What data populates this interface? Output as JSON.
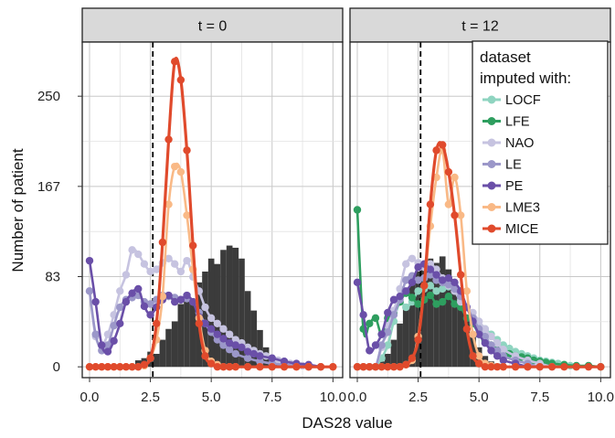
{
  "chart_data": {
    "type": "line",
    "xlabel": "DAS28 value",
    "ylabel": "Number of patient",
    "x_ticks": [
      "0.0",
      "2.5",
      "5.0",
      "7.5",
      "10.0"
    ],
    "y_ticks": [
      "0",
      "83",
      "167",
      "250"
    ],
    "xlim": [
      -0.3,
      10.4
    ],
    "ylim": [
      -10,
      300
    ],
    "threshold_line_x": 2.6,
    "grid": true,
    "legend_position": "top-right (inside right panel)",
    "legend_title_line1": "dataset",
    "legend_title_line2": "imputed  with:",
    "series_colors": {
      "LOCF": "#8fd4c0",
      "LFE": "#2e9e5f",
      "NAO": "#c6c3e0",
      "LE": "#9b97c9",
      "PE": "#6a4fa8",
      "LME3": "#f9b986",
      "MICE": "#e04a2c"
    },
    "histogram_color": "#3b3b3b",
    "panels": [
      {
        "strip": "t = 0",
        "histogram": {
          "x": [
            2.0,
            2.25,
            2.5,
            2.75,
            3.0,
            3.25,
            3.5,
            3.75,
            4.0,
            4.25,
            4.5,
            4.75,
            5.0,
            5.25,
            5.5,
            5.75,
            6.0,
            6.25,
            6.5,
            6.75,
            7.0,
            7.25,
            7.5,
            7.75,
            8.0,
            8.25,
            8.5
          ],
          "values": [
            6,
            8,
            14,
            12,
            25,
            35,
            42,
            58,
            62,
            58,
            78,
            88,
            100,
            95,
            108,
            112,
            110,
            100,
            70,
            52,
            34,
            18,
            10,
            6,
            4,
            3,
            2
          ]
        },
        "series": [
          {
            "name": "MICE",
            "x": [
              0.0,
              0.25,
              0.5,
              0.75,
              1.0,
              1.25,
              1.5,
              1.75,
              2.0,
              2.25,
              2.5,
              2.75,
              3.0,
              3.25,
              3.5,
              3.75,
              4.0,
              4.25,
              4.5,
              4.75,
              5.0,
              5.25,
              5.5,
              5.75,
              6.0,
              6.5,
              7.0,
              7.5,
              8.0,
              8.5,
              9.0,
              9.5,
              10.0
            ],
            "values": [
              0,
              0,
              0,
              0,
              0,
              0,
              0,
              0,
              0,
              2,
              8,
              40,
              115,
              210,
              282,
              265,
              200,
              112,
              40,
              10,
              3,
              0,
              0,
              0,
              0,
              0,
              0,
              0,
              0,
              0,
              0,
              0,
              0
            ]
          },
          {
            "name": "LME3",
            "x": [
              0.0,
              0.25,
              0.5,
              0.75,
              1.0,
              1.25,
              1.5,
              1.75,
              2.0,
              2.25,
              2.5,
              2.75,
              3.0,
              3.25,
              3.5,
              3.75,
              4.0,
              4.25,
              4.5,
              4.75,
              5.0,
              5.25,
              5.5,
              5.75,
              6.0,
              6.5,
              7.0,
              7.5,
              8.0,
              8.5,
              9.0,
              9.5,
              10.0
            ],
            "values": [
              0,
              0,
              0,
              0,
              0,
              0,
              0,
              0,
              0,
              1,
              8,
              25,
              65,
              150,
              185,
              180,
              140,
              90,
              45,
              15,
              5,
              2,
              0,
              0,
              0,
              0,
              0,
              0,
              0,
              0,
              0,
              0,
              0
            ]
          },
          {
            "name": "NAO",
            "x": [
              0.0,
              0.25,
              0.5,
              0.75,
              1.0,
              1.25,
              1.5,
              1.75,
              2.0,
              2.25,
              2.5,
              2.75,
              3.0,
              3.25,
              3.5,
              3.75,
              4.0,
              4.25,
              4.5,
              4.75,
              5.0,
              5.25,
              5.5,
              5.75,
              6.0,
              6.25,
              6.5,
              6.75,
              7.0,
              7.25,
              7.5,
              7.75,
              8.0,
              8.25,
              8.5,
              8.75,
              9.0
            ],
            "values": [
              70,
              28,
              20,
              30,
              48,
              70,
              85,
              108,
              104,
              95,
              88,
              90,
              96,
              100,
              95,
              88,
              98,
              83,
              70,
              55,
              45,
              40,
              35,
              30,
              25,
              22,
              18,
              15,
              12,
              10,
              8,
              6,
              5,
              3,
              2,
              1,
              0
            ]
          },
          {
            "name": "LE",
            "x": [
              0.0,
              0.25,
              0.5,
              0.75,
              1.0,
              1.25,
              1.5,
              1.75,
              2.0,
              2.25,
              2.5,
              2.75,
              3.0,
              3.25,
              3.5,
              3.75,
              4.0,
              4.25,
              4.5,
              4.75,
              5.0,
              5.25,
              5.5,
              5.75,
              6.0,
              6.5,
              7.0,
              7.5,
              8.0,
              8.5,
              9.0
            ],
            "values": [
              70,
              30,
              15,
              20,
              38,
              55,
              62,
              64,
              66,
              60,
              58,
              62,
              66,
              65,
              64,
              62,
              63,
              60,
              50,
              40,
              32,
              25,
              20,
              16,
              12,
              8,
              5,
              3,
              2,
              1,
              0
            ]
          },
          {
            "name": "PE",
            "x": [
              0.0,
              0.25,
              0.5,
              0.75,
              1.0,
              1.25,
              1.5,
              1.75,
              2.0,
              2.25,
              2.5,
              2.75,
              3.0,
              3.25,
              3.5,
              3.75,
              4.0,
              4.25,
              4.5,
              4.75,
              5.0,
              5.25,
              5.5,
              5.75,
              6.0,
              6.25,
              6.5,
              6.75,
              7.0,
              7.5,
              8.0,
              8.5,
              9.0,
              9.5
            ],
            "values": [
              98,
              60,
              20,
              14,
              24,
              40,
              60,
              68,
              72,
              56,
              48,
              55,
              62,
              66,
              60,
              62,
              66,
              60,
              46,
              40,
              35,
              30,
              26,
              22,
              20,
              18,
              14,
              12,
              10,
              8,
              5,
              3,
              2,
              0
            ]
          }
        ]
      },
      {
        "strip": "t = 12",
        "histogram": {
          "x": [
            1.0,
            1.25,
            1.5,
            1.75,
            2.0,
            2.25,
            2.5,
            2.75,
            3.0,
            3.25,
            3.5,
            3.75,
            4.0,
            4.25,
            4.5,
            4.75,
            5.0,
            5.25,
            5.5,
            5.75
          ],
          "values": [
            5,
            12,
            25,
            40,
            58,
            76,
            88,
            94,
            100,
            96,
            102,
            90,
            78,
            60,
            45,
            28,
            18,
            10,
            5,
            3
          ]
        },
        "series": [
          {
            "name": "LOCF",
            "x": [
              0.0,
              0.25,
              0.5,
              0.75,
              1.0,
              1.25,
              1.5,
              1.75,
              2.0,
              2.25,
              2.5,
              2.75,
              3.0,
              3.25,
              3.5,
              3.75,
              4.0,
              4.25,
              4.5,
              4.75,
              5.0,
              5.25,
              5.5,
              5.75,
              6.0,
              6.25,
              6.5,
              6.75,
              7.0,
              7.25,
              7.5,
              7.75,
              8.0,
              8.25,
              8.5,
              8.75,
              9.0
            ],
            "values": [
              0,
              0,
              0,
              0,
              8,
              20,
              42,
              60,
              55,
              60,
              70,
              72,
              75,
              70,
              72,
              74,
              70,
              62,
              55,
              45,
              38,
              35,
              30,
              25,
              20,
              17,
              14,
              12,
              10,
              8,
              6,
              5,
              4,
              3,
              2,
              1,
              0
            ]
          },
          {
            "name": "LFE",
            "x": [
              0.0,
              0.25,
              0.5,
              0.75,
              1.0,
              1.25,
              1.5,
              1.75,
              2.0,
              2.25,
              2.5,
              2.75,
              3.0,
              3.25,
              3.5,
              3.75,
              4.0,
              4.25,
              4.5,
              4.75,
              5.0,
              5.25,
              5.5,
              5.75,
              6.0,
              6.25,
              6.5,
              6.75,
              7.0,
              7.25,
              7.5,
              7.75,
              8.0,
              8.5,
              9.0,
              9.5,
              10.0
            ],
            "values": [
              145,
              35,
              40,
              45,
              30,
              45,
              50,
              60,
              68,
              64,
              58,
              62,
              66,
              58,
              60,
              65,
              58,
              55,
              45,
              40,
              30,
              24,
              20,
              16,
              14,
              12,
              10,
              9,
              8,
              6,
              5,
              4,
              3,
              2,
              1,
              1,
              0
            ]
          },
          {
            "name": "NAO",
            "x": [
              0.0,
              0.25,
              0.5,
              0.75,
              1.0,
              1.25,
              1.5,
              1.75,
              2.0,
              2.25,
              2.5,
              2.75,
              3.0,
              3.25,
              3.5,
              3.75,
              4.0,
              4.25,
              4.5,
              4.75,
              5.0,
              5.25,
              5.5,
              5.75,
              6.0,
              6.5,
              7.0,
              7.5,
              8.0
            ],
            "values": [
              0,
              0,
              0,
              0,
              18,
              38,
              52,
              72,
              95,
              100,
              96,
              92,
              95,
              90,
              82,
              75,
              70,
              60,
              55,
              50,
              42,
              35,
              28,
              22,
              16,
              10,
              6,
              3,
              0
            ]
          },
          {
            "name": "LE",
            "x": [
              0.0,
              0.25,
              0.5,
              0.75,
              1.0,
              1.25,
              1.5,
              1.75,
              2.0,
              2.25,
              2.5,
              2.75,
              3.0,
              3.25,
              3.5,
              3.75,
              4.0,
              4.25,
              4.5,
              4.75,
              5.0,
              5.25,
              5.5,
              5.75,
              6.0,
              6.5,
              7.0,
              7.5
            ],
            "values": [
              0,
              0,
              0,
              0,
              20,
              32,
              48,
              62,
              80,
              84,
              80,
              82,
              85,
              80,
              78,
              76,
              72,
              65,
              55,
              45,
              35,
              28,
              20,
              15,
              10,
              6,
              3,
              0
            ]
          },
          {
            "name": "PE",
            "x": [
              0.0,
              0.25,
              0.5,
              0.75,
              1.0,
              1.25,
              1.5,
              1.75,
              2.0,
              2.25,
              2.5,
              2.75,
              3.0,
              3.25,
              3.5,
              3.75,
              4.0,
              4.25,
              4.5,
              4.75,
              5.0,
              5.25,
              5.5,
              5.75,
              6.0,
              6.5,
              7.0
            ],
            "values": [
              78,
              48,
              15,
              20,
              30,
              50,
              62,
              65,
              70,
              78,
              92,
              95,
              90,
              85,
              80,
              82,
              78,
              70,
              55,
              42,
              30,
              22,
              15,
              10,
              6,
              3,
              0
            ]
          },
          {
            "name": "LME3",
            "x": [
              0.0,
              0.25,
              0.5,
              0.75,
              1.0,
              1.25,
              1.5,
              1.75,
              2.0,
              2.25,
              2.5,
              2.75,
              3.0,
              3.25,
              3.5,
              3.75,
              4.0,
              4.25,
              4.5,
              4.75,
              5.0,
              5.25,
              5.5,
              6.0,
              6.5,
              7.0
            ],
            "values": [
              0,
              0,
              0,
              0,
              0,
              0,
              0,
              0,
              2,
              6,
              28,
              75,
              130,
              175,
              200,
              150,
              175,
              140,
              70,
              30,
              10,
              3,
              1,
              0,
              0,
              0
            ]
          },
          {
            "name": "MICE",
            "x": [
              0.0,
              0.25,
              0.5,
              0.75,
              1.0,
              1.25,
              1.5,
              1.75,
              2.0,
              2.25,
              2.5,
              2.75,
              3.0,
              3.25,
              3.5,
              3.75,
              4.0,
              4.25,
              4.5,
              4.75,
              5.0,
              5.25,
              5.5,
              5.75,
              6.0,
              6.5,
              7.0,
              7.5,
              8.0,
              8.5,
              9.0,
              9.5,
              10.0
            ],
            "values": [
              0,
              0,
              0,
              0,
              0,
              0,
              0,
              0,
              2,
              8,
              25,
              75,
              150,
              200,
              205,
              180,
              140,
              85,
              35,
              10,
              3,
              0,
              0,
              0,
              0,
              0,
              0,
              0,
              0,
              0,
              0,
              0,
              0
            ]
          }
        ]
      }
    ],
    "legend_entries": [
      "LOCF",
      "LFE",
      "NAO",
      "LE",
      "PE",
      "LME3",
      "MICE"
    ]
  }
}
